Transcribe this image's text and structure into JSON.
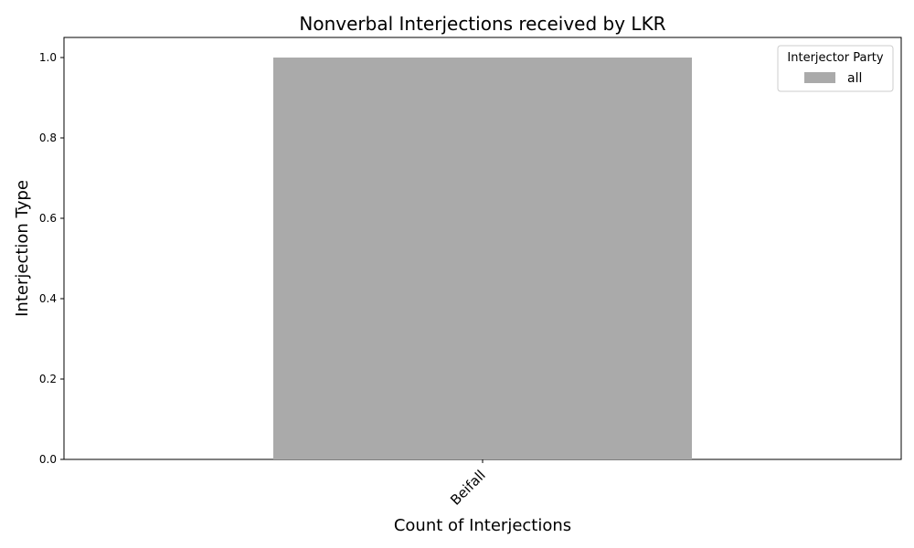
{
  "chart_data": {
    "type": "bar",
    "title": "Nonverbal Interjections received by LKR",
    "xlabel": "Count of Interjections",
    "ylabel": "Interjection Type",
    "categories": [
      "Beifall"
    ],
    "series": [
      {
        "name": "all",
        "values": [
          1
        ],
        "color": "#aaaaaa"
      }
    ],
    "ylim": [
      0,
      1.05
    ],
    "yticks": [
      0.0,
      0.2,
      0.4,
      0.6,
      0.8,
      1.0
    ],
    "ytick_labels": [
      "0.0",
      "0.2",
      "0.4",
      "0.6",
      "0.8",
      "1.0"
    ],
    "xtick_rotation": 45,
    "grid": false,
    "legend": {
      "title": "Interjector Party",
      "placement": "top-right"
    }
  }
}
